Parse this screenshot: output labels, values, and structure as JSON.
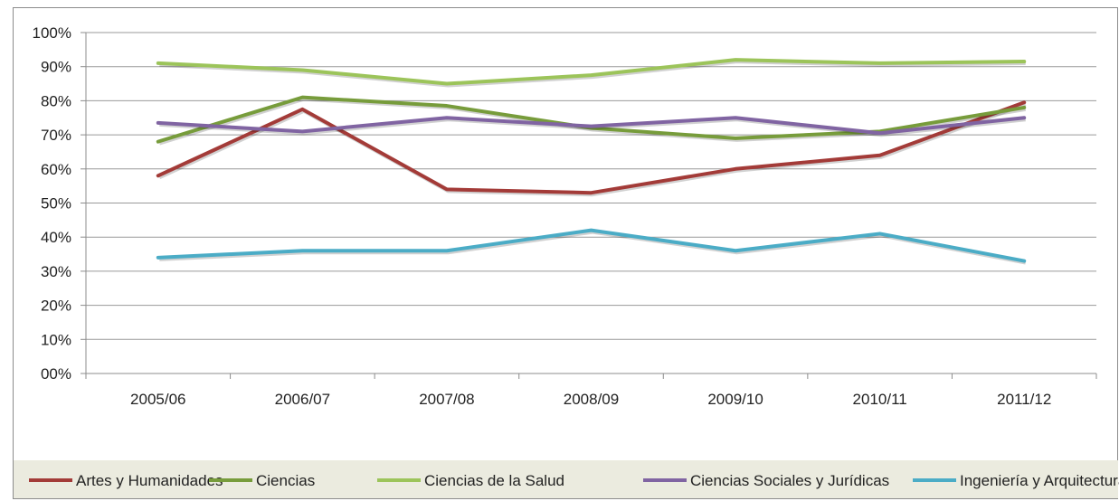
{
  "chart_data": {
    "type": "line",
    "title": "",
    "xlabel": "",
    "ylabel": "",
    "categories": [
      "2005/06",
      "2006/07",
      "2007/08",
      "2008/09",
      "2009/10",
      "2010/11",
      "2011/12"
    ],
    "y_ticks": [
      "00%",
      "10%",
      "20%",
      "30%",
      "40%",
      "50%",
      "60%",
      "70%",
      "80%",
      "90%",
      "100%"
    ],
    "ylim": [
      0,
      100
    ],
    "grid": "horizontal",
    "legend_position": "bottom",
    "series": [
      {
        "name": "Artes y Humanidades",
        "color": "#a33b38",
        "values": [
          58,
          77.5,
          54,
          53,
          60,
          64,
          79.5
        ]
      },
      {
        "name": "Ciencias",
        "color": "#779c3b",
        "values": [
          68,
          81,
          78.5,
          72,
          69,
          71,
          78
        ]
      },
      {
        "name": "Ciencias de la Salud",
        "color": "#9cc45a",
        "values": [
          91,
          89,
          85,
          87.5,
          92,
          91,
          91.5
        ]
      },
      {
        "name": "Ciencias Sociales y Jurídicas",
        "color": "#8064a2",
        "values": [
          73.5,
          71,
          75,
          72.5,
          75,
          70.5,
          75
        ]
      },
      {
        "name": "Ingeniería y Arquitectura",
        "color": "#4bacc6",
        "values": [
          34,
          36,
          36,
          42,
          36,
          41,
          33
        ]
      }
    ]
  }
}
